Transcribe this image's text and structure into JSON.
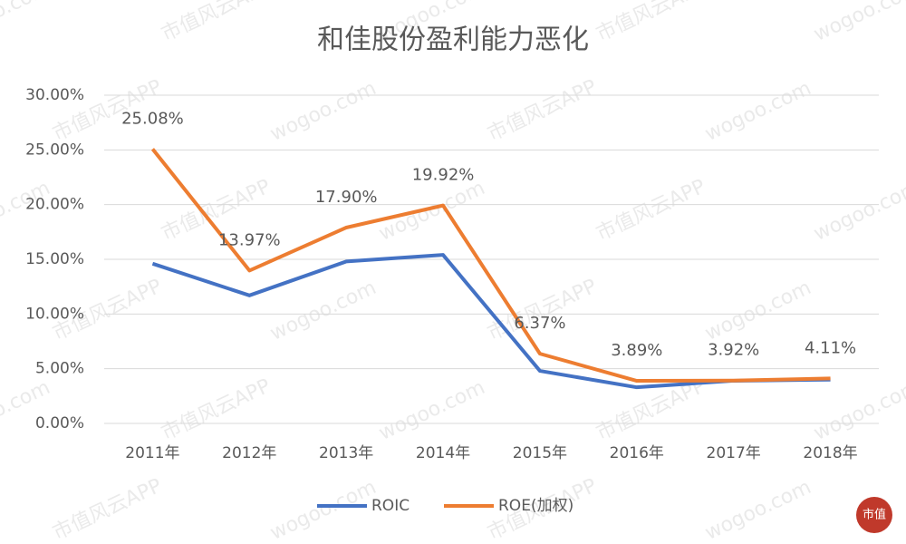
{
  "chart_data": {
    "type": "line",
    "title": "和佳股份盈利能力恶化",
    "categories": [
      "2011年",
      "2012年",
      "2013年",
      "2014年",
      "2015年",
      "2016年",
      "2017年",
      "2018年"
    ],
    "series": [
      {
        "name": "ROIC",
        "color": "#4472c4",
        "values": [
          14.6,
          11.7,
          14.8,
          15.4,
          4.8,
          3.3,
          3.9,
          4.0
        ]
      },
      {
        "name": "ROE(加权)",
        "color": "#ed7d31",
        "values": [
          25.08,
          13.97,
          17.9,
          19.92,
          6.37,
          3.89,
          3.92,
          4.11
        ],
        "value_labels": [
          "25.08%",
          "13.97%",
          "17.90%",
          "19.92%",
          "6.37%",
          "3.89%",
          "3.92%",
          "4.11%"
        ]
      }
    ],
    "ylim": [
      0,
      30
    ],
    "yticks": [
      {
        "value": 0,
        "label": "0.00%"
      },
      {
        "value": 5,
        "label": "5.00%"
      },
      {
        "value": 10,
        "label": "10.00%"
      },
      {
        "value": 15,
        "label": "15.00%"
      },
      {
        "value": 20,
        "label": "20.00%"
      },
      {
        "value": 25,
        "label": "25.00%"
      },
      {
        "value": 30,
        "label": "30.00%"
      }
    ],
    "grid": true,
    "legend": "bottom",
    "watermark": [
      "wogoo.com",
      "市值风云APP"
    ],
    "logo": "市值"
  }
}
